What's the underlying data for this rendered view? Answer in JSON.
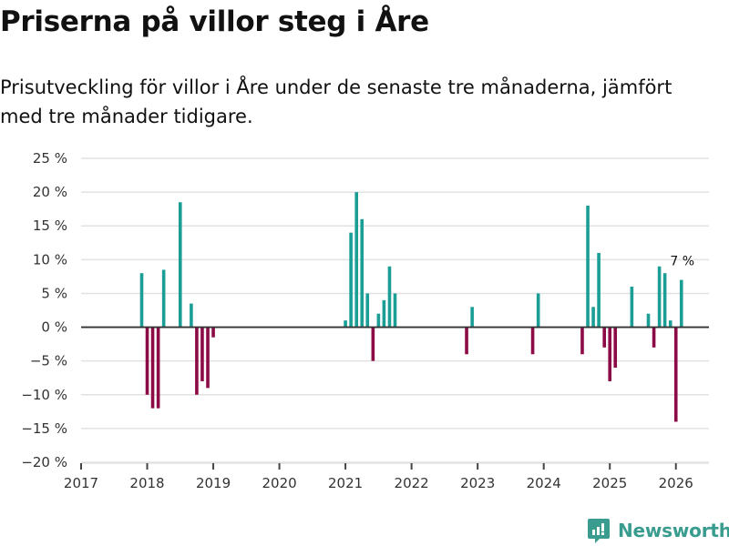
{
  "title": "Priserna på villor steg i Åre",
  "subtitle": "Prisutveckling för villor i Åre under de senaste tre månaderna, jämfört med tre månader tidigare.",
  "brand": {
    "name": "Newsworthy",
    "color": "#3a9c8f"
  },
  "chart_data": {
    "type": "bar",
    "title": "",
    "xlabel": "",
    "ylabel": "",
    "ylim": [
      -20,
      25
    ],
    "xlim": [
      2017,
      2026.5
    ],
    "yticks": [
      25,
      20,
      15,
      10,
      5,
      0,
      -5,
      -10,
      -15,
      -20
    ],
    "ytick_labels": [
      "25 %",
      "20 %",
      "15 %",
      "10 %",
      "5 %",
      "0 %",
      "−5 %",
      "−10 %",
      "−15 %",
      "−20 %"
    ],
    "xticks": [
      2017,
      2018,
      2019,
      2020,
      2021,
      2022,
      2023,
      2024,
      2025,
      2026
    ],
    "xtick_labels": [
      "2017",
      "2018",
      "2019",
      "2020",
      "2021",
      "2022",
      "2023",
      "2024",
      "2025",
      "2026"
    ],
    "grid": true,
    "colors": {
      "positive": "#1a9e96",
      "negative": "#8c0a45"
    },
    "annotation": {
      "label": "7 %",
      "x": 2026.083,
      "y": 7
    },
    "x": [
      2017.917,
      2018.0,
      2018.083,
      2018.167,
      2018.25,
      2018.5,
      2018.667,
      2018.75,
      2018.833,
      2018.917,
      2019.0,
      2021.0,
      2021.083,
      2021.167,
      2021.25,
      2021.333,
      2021.417,
      2021.5,
      2021.583,
      2021.667,
      2021.75,
      2022.833,
      2022.917,
      2023.833,
      2023.917,
      2024.583,
      2024.667,
      2024.75,
      2024.833,
      2024.917,
      2025.0,
      2025.083,
      2025.333,
      2025.583,
      2025.667,
      2025.75,
      2025.833,
      2025.917,
      2026.0,
      2026.083
    ],
    "values": [
      8,
      -10,
      -12,
      -12,
      8.5,
      18.5,
      3.5,
      -10,
      -8,
      -9,
      -1.5,
      1,
      14,
      20,
      16,
      5,
      -5,
      2,
      4,
      9,
      5,
      -4,
      3,
      -4,
      5,
      -4,
      18,
      3,
      11,
      -3,
      -8,
      -6,
      6,
      2,
      -3,
      9,
      8,
      1,
      -14,
      7
    ]
  }
}
